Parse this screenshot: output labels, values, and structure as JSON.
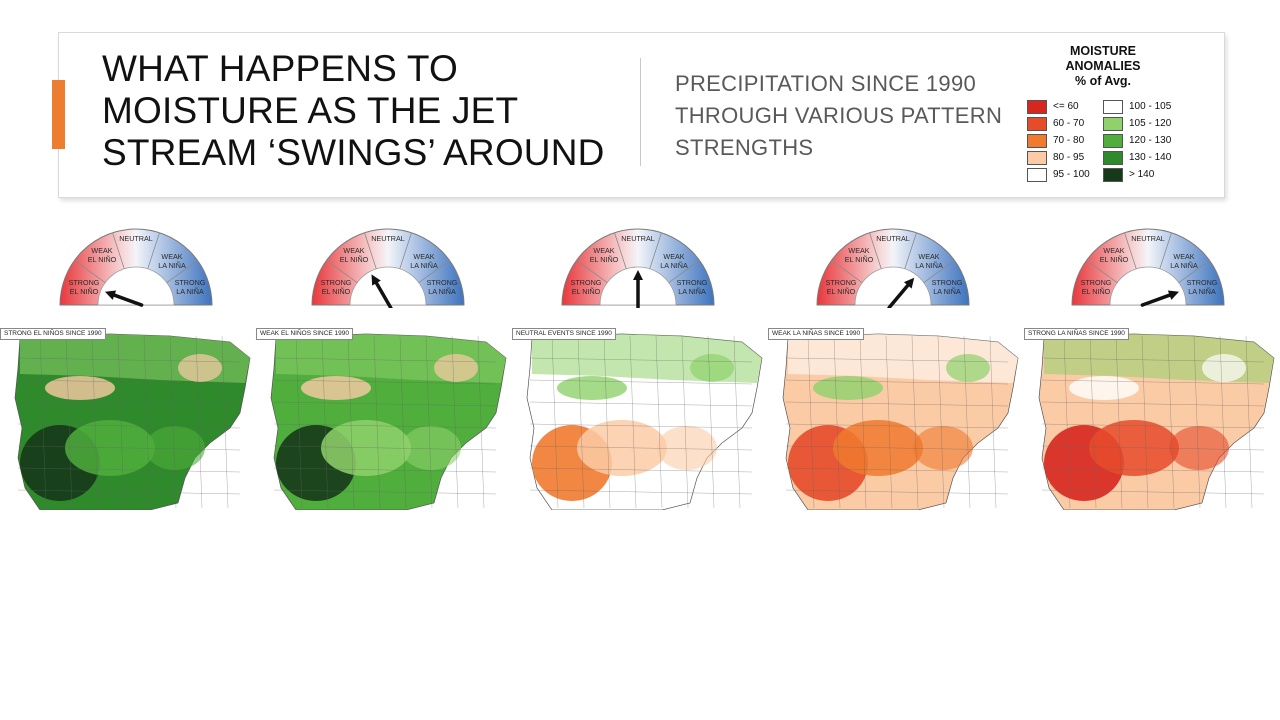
{
  "slide": {
    "title": "WHAT HAPPENS TO MOISTURE AS THE JET STREAM ‘SWINGS’ AROUND",
    "subtitle": "PRECIPITATION SINCE 1990 THROUGH VARIOUS PATTERN STRENGTHS",
    "accent_color": "#ED7D31"
  },
  "legend": {
    "title_line1": "MOISTURE",
    "title_line2": "ANOMALIES",
    "title_line3": "% of Avg.",
    "items": [
      {
        "label": "<= 60",
        "color": "#D7261E"
      },
      {
        "label": "100 - 105",
        "color": "#FFFFFF"
      },
      {
        "label": "60 - 70",
        "color": "#E64B2A"
      },
      {
        "label": "105 - 120",
        "color": "#8FD16B"
      },
      {
        "label": "70 - 80",
        "color": "#F07A2E"
      },
      {
        "label": "120 - 130",
        "color": "#4FAE3C"
      },
      {
        "label": "80 - 95",
        "color": "#FBCBA6"
      },
      {
        "label": "130 - 140",
        "color": "#2E8A2A"
      },
      {
        "label": "95 - 100",
        "color": "#FFFFFF"
      },
      {
        "label": "> 140",
        "color": "#16391A"
      }
    ]
  },
  "gauge_labels": {
    "neutral": "NEUTRAL",
    "weak_el_nino_1": "WEAK",
    "weak_el_nino_2": "EL NIÑO",
    "strong_el_nino_1": "STRONG",
    "strong_el_nino_2": "EL NIÑO",
    "weak_la_nina_1": "WEAK",
    "weak_la_nina_2": "LA NIÑA",
    "strong_la_nina_1": "STRONG",
    "strong_la_nina_2": "LA NIÑA"
  },
  "panels": [
    {
      "map_label": "STRONG EL NIÑOS SINCE 1990",
      "needle": "strong-el-nino"
    },
    {
      "map_label": "WEAK EL NIÑOS SINCE 1990",
      "needle": "weak-el-nino"
    },
    {
      "map_label": "NEUTRAL EVENTS SINCE 1990",
      "needle": "neutral"
    },
    {
      "map_label": "WEAK LA NIÑAS SINCE 1990",
      "needle": "weak-la-nina"
    },
    {
      "map_label": "STRONG LA NIÑAS SINCE 1990",
      "needle": "strong-la-nina"
    }
  ]
}
